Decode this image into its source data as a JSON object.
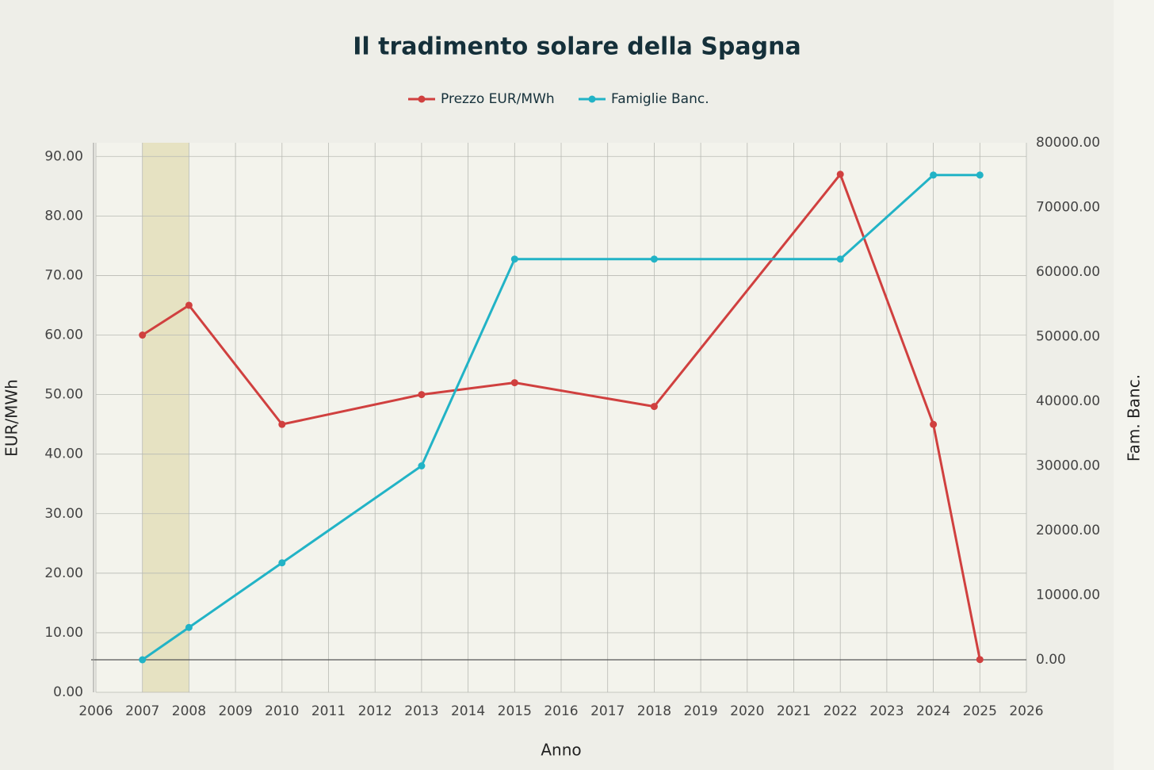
{
  "chart_data": {
    "type": "line",
    "title": "Il tradimento solare della Spagna",
    "x_label": "Anno",
    "y_label": "EUR/MWh",
    "y2_label": "Fam. Banc.",
    "xlim": [
      2006,
      2026
    ],
    "xticks": [
      2006,
      2007,
      2008,
      2009,
      2010,
      2011,
      2012,
      2013,
      2014,
      2015,
      2016,
      2017,
      2018,
      2019,
      2020,
      2021,
      2022,
      2023,
      2024,
      2025,
      2026
    ],
    "ylim": [
      0,
      92.3
    ],
    "yticks": [
      {
        "value": 0,
        "label": "0.00"
      },
      {
        "value": 10,
        "label": "10.00"
      },
      {
        "value": 20,
        "label": "20.00"
      },
      {
        "value": 30,
        "label": "30.00"
      },
      {
        "value": 40,
        "label": "40.00"
      },
      {
        "value": 50,
        "label": "50.00"
      },
      {
        "value": 60,
        "label": "60.00"
      },
      {
        "value": 70,
        "label": "70.00"
      },
      {
        "value": 80,
        "label": "80.00"
      },
      {
        "value": 90,
        "label": "90.00"
      }
    ],
    "y2lim": [
      -5030,
      80000
    ],
    "y2ticks": [
      {
        "value": 0,
        "label": "0.00"
      },
      {
        "value": 10000,
        "label": "10000.00"
      },
      {
        "value": 20000,
        "label": "20000.00"
      },
      {
        "value": 30000,
        "label": "30000.00"
      },
      {
        "value": 40000,
        "label": "40000.00"
      },
      {
        "value": 50000,
        "label": "50000.00"
      },
      {
        "value": 60000,
        "label": "60000.00"
      },
      {
        "value": 70000,
        "label": "70000.00"
      },
      {
        "value": 80000,
        "label": "80000.00"
      }
    ],
    "grid": true,
    "highlight_x": [
      2007,
      2008
    ],
    "series": [
      {
        "name": "Prezzo EUR/MWh",
        "color": "#d0403f",
        "x": [
          2007,
          2008,
          2010,
          2013,
          2015,
          2018,
          2022,
          2024,
          2025
        ],
        "values": [
          60,
          65,
          45,
          50,
          52,
          48,
          87,
          45,
          5.5
        ]
      },
      {
        "name": "Famiglie Banc.",
        "color": "#22b3c6",
        "axis": "y2",
        "x": [
          2007,
          2008,
          2010,
          2013,
          2015,
          2018,
          2022,
          2024,
          2025
        ],
        "values": [
          0,
          5000,
          15000,
          30000,
          62000,
          62000,
          62000,
          75000,
          75000
        ]
      }
    ]
  }
}
